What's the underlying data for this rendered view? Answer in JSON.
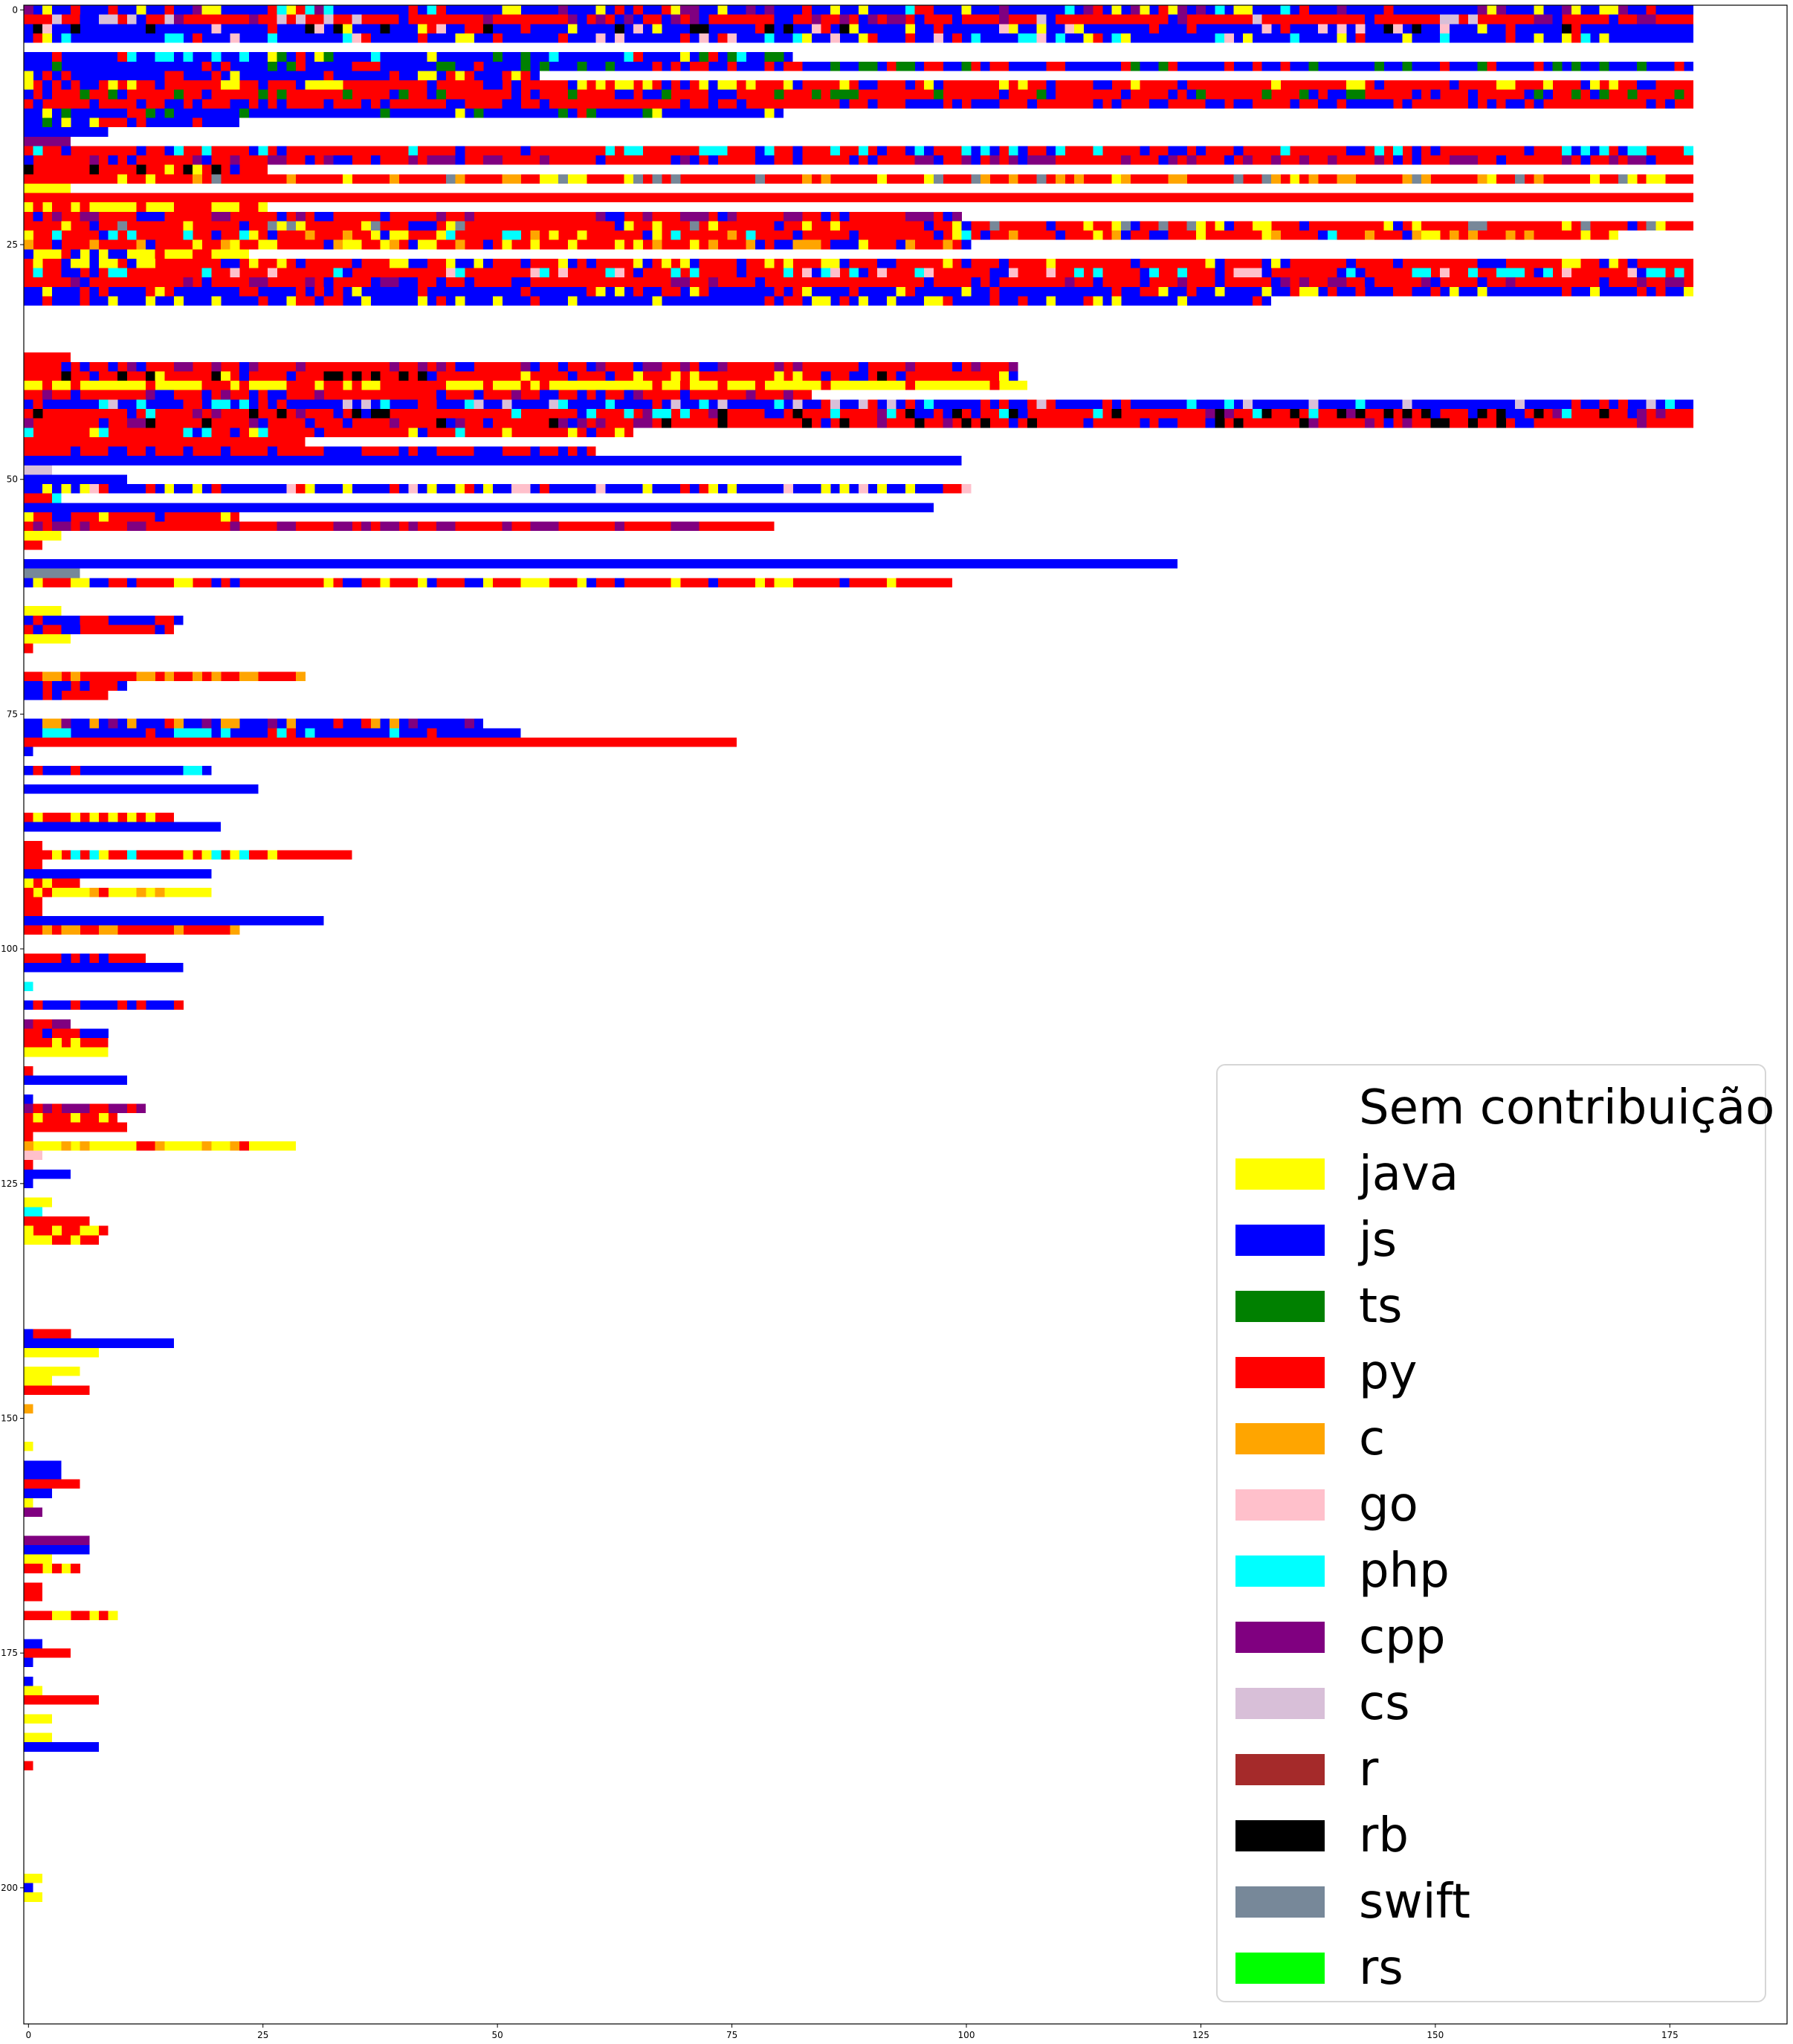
{
  "chart_data": {
    "type": "heatmap",
    "title": "",
    "xlabel": "",
    "ylabel": "",
    "xlim": [
      -0.5,
      187.5
    ],
    "ylim": [
      214.5,
      -0.5
    ],
    "x_ticks": [
      0,
      25,
      50,
      75,
      100,
      125,
      150,
      175
    ],
    "y_ticks": [
      0,
      25,
      50,
      75,
      100,
      125,
      150,
      175,
      200
    ],
    "grid": false,
    "legend_placement": "lower right",
    "categories": [
      {
        "key": "none",
        "label": "Sem contribuição",
        "color": "#ffffff"
      },
      {
        "key": "java",
        "label": "java",
        "color": "#ffff00"
      },
      {
        "key": "js",
        "label": "js",
        "color": "#0000ff"
      },
      {
        "key": "ts",
        "label": "ts",
        "color": "#008000"
      },
      {
        "key": "py",
        "label": "py",
        "color": "#ff0000"
      },
      {
        "key": "c",
        "label": "c",
        "color": "#ffa500"
      },
      {
        "key": "go",
        "label": "go",
        "color": "#ffc0cb"
      },
      {
        "key": "php",
        "label": "php",
        "color": "#00ffff"
      },
      {
        "key": "cpp",
        "label": "cpp",
        "color": "#800080"
      },
      {
        "key": "cs",
        "label": "cs",
        "color": "#d8bfd8"
      },
      {
        "key": "r",
        "label": "r",
        "color": "#a52a2a"
      },
      {
        "key": "rb",
        "label": "rb",
        "color": "#000000"
      },
      {
        "key": "swift",
        "label": "swift",
        "color": "#778899"
      },
      {
        "key": "rs",
        "label": "rs",
        "color": "#00ff00"
      }
    ],
    "rows": [
      {
        "y": 0,
        "len": 178,
        "base": "js",
        "mix": [
          "py",
          "php",
          "java",
          "cpp"
        ]
      },
      {
        "y": 1,
        "len": 178,
        "base": "py",
        "mix": [
          "js",
          "cpp",
          "cs"
        ]
      },
      {
        "y": 2,
        "len": 178,
        "base": "js",
        "mix": [
          "py",
          "rb",
          "java",
          "go"
        ]
      },
      {
        "y": 3,
        "len": 178,
        "base": "js",
        "mix": [
          "py",
          "php",
          "go",
          "java"
        ]
      },
      {
        "y": 5,
        "len": 82,
        "base": "js",
        "mix": [
          "py",
          "ts",
          "java",
          "php"
        ]
      },
      {
        "y": 6,
        "len": 178,
        "base": "js",
        "mix": [
          "ts",
          "py"
        ]
      },
      {
        "y": 7,
        "len": 55,
        "base": "js",
        "mix": [
          "py",
          "java"
        ]
      },
      {
        "y": 8,
        "len": 178,
        "base": "py",
        "mix": [
          "js",
          "java"
        ]
      },
      {
        "y": 9,
        "len": 178,
        "base": "py",
        "mix": [
          "js",
          "ts"
        ]
      },
      {
        "y": 10,
        "len": 178,
        "base": "py",
        "mix": [
          "js"
        ]
      },
      {
        "y": 11,
        "len": 81,
        "base": "js",
        "mix": [
          "py",
          "ts",
          "java"
        ]
      },
      {
        "y": 12,
        "len": 23,
        "base": "js",
        "mix": [
          "py",
          "java",
          "ts"
        ]
      },
      {
        "y": 13,
        "len": 9,
        "base": "js",
        "mix": []
      },
      {
        "y": 14,
        "len": 5,
        "base": "cpp",
        "mix": []
      },
      {
        "y": 15,
        "len": 178,
        "base": "py",
        "mix": [
          "js",
          "php"
        ]
      },
      {
        "y": 16,
        "len": 178,
        "base": "py",
        "mix": [
          "js",
          "cpp"
        ]
      },
      {
        "y": 17,
        "len": 26,
        "base": "py",
        "mix": [
          "java",
          "rb",
          "js"
        ]
      },
      {
        "y": 18,
        "len": 178,
        "base": "py",
        "mix": [
          "swift",
          "java",
          "c"
        ]
      },
      {
        "y": 19,
        "len": 5,
        "base": "java",
        "mix": []
      },
      {
        "y": 20,
        "len": 178,
        "base": "py",
        "mix": []
      },
      {
        "y": 21,
        "len": 26,
        "base": "java",
        "mix": [
          "py"
        ]
      },
      {
        "y": 22,
        "len": 100,
        "base": "py",
        "mix": [
          "js",
          "cpp"
        ]
      },
      {
        "y": 23,
        "len": 178,
        "base": "py",
        "mix": [
          "js",
          "swift",
          "java"
        ]
      },
      {
        "y": 24,
        "len": 170,
        "base": "py",
        "mix": [
          "js",
          "c",
          "java",
          "php"
        ]
      },
      {
        "y": 25,
        "len": 101,
        "base": "py",
        "mix": [
          "js",
          "java",
          "c"
        ]
      },
      {
        "y": 26,
        "len": 24,
        "base": "java",
        "mix": [
          "py",
          "js"
        ]
      },
      {
        "y": 27,
        "len": 178,
        "base": "py",
        "mix": [
          "js",
          "java"
        ]
      },
      {
        "y": 28,
        "len": 178,
        "base": "py",
        "mix": [
          "js",
          "php",
          "go"
        ]
      },
      {
        "y": 29,
        "len": 178,
        "base": "py",
        "mix": [
          "js",
          "cpp"
        ]
      },
      {
        "y": 30,
        "len": 178,
        "base": "js",
        "mix": [
          "py",
          "java"
        ]
      },
      {
        "y": 31,
        "len": 133,
        "base": "js",
        "mix": [
          "java",
          "py"
        ]
      },
      {
        "y": 37,
        "len": 5,
        "base": "py",
        "mix": []
      },
      {
        "y": 38,
        "len": 106,
        "base": "py",
        "mix": [
          "js",
          "cpp"
        ]
      },
      {
        "y": 39,
        "len": 106,
        "base": "py",
        "mix": [
          "java",
          "rb",
          "js"
        ]
      },
      {
        "y": 40,
        "len": 107,
        "base": "java",
        "mix": [
          "py"
        ]
      },
      {
        "y": 41,
        "len": 84,
        "base": "py",
        "mix": [
          "js",
          "cpp"
        ]
      },
      {
        "y": 42,
        "len": 178,
        "base": "js",
        "mix": [
          "py",
          "cs",
          "php"
        ]
      },
      {
        "y": 43,
        "len": 178,
        "base": "py",
        "mix": [
          "js",
          "cpp",
          "php",
          "rb"
        ]
      },
      {
        "y": 44,
        "len": 178,
        "base": "py",
        "mix": [
          "rb",
          "cpp",
          "js"
        ]
      },
      {
        "y": 45,
        "len": 65,
        "base": "py",
        "mix": [
          "js",
          "php",
          "java"
        ]
      },
      {
        "y": 46,
        "len": 30,
        "base": "py",
        "mix": []
      },
      {
        "y": 47,
        "len": 61,
        "base": "py",
        "mix": [
          "js"
        ]
      },
      {
        "y": 48,
        "len": 100,
        "base": "js",
        "mix": []
      },
      {
        "y": 49,
        "len": 3,
        "base": "cs",
        "mix": []
      },
      {
        "y": 50,
        "len": 11,
        "base": "js",
        "mix": []
      },
      {
        "y": 51,
        "len": 101,
        "base": "js",
        "mix": [
          "py",
          "java",
          "go"
        ]
      },
      {
        "y": 52,
        "len": 4,
        "base": "php",
        "mix": [
          "py"
        ]
      },
      {
        "y": 53,
        "len": 97,
        "base": "js",
        "mix": []
      },
      {
        "y": 54,
        "len": 23,
        "base": "py",
        "mix": [
          "java",
          "js"
        ]
      },
      {
        "y": 55,
        "len": 80,
        "base": "py",
        "mix": [
          "cpp"
        ]
      },
      {
        "y": 56,
        "len": 4,
        "base": "java",
        "mix": [
          "php"
        ]
      },
      {
        "y": 57,
        "len": 2,
        "base": "py",
        "mix": []
      },
      {
        "y": 59,
        "len": 123,
        "base": "js",
        "mix": []
      },
      {
        "y": 60,
        "len": 6,
        "base": "swift",
        "mix": []
      },
      {
        "y": 61,
        "len": 99,
        "base": "py",
        "mix": [
          "java",
          "js"
        ]
      },
      {
        "y": 64,
        "len": 4,
        "base": "java",
        "mix": []
      },
      {
        "y": 65,
        "len": 17,
        "base": "js",
        "mix": [
          "py"
        ]
      },
      {
        "y": 66,
        "len": 16,
        "base": "py",
        "mix": [
          "js"
        ]
      },
      {
        "y": 67,
        "len": 5,
        "base": "java",
        "mix": []
      },
      {
        "y": 68,
        "len": 1,
        "base": "py",
        "mix": []
      },
      {
        "y": 71,
        "len": 30,
        "base": "py",
        "mix": [
          "c"
        ]
      },
      {
        "y": 72,
        "len": 11,
        "base": "py",
        "mix": [
          "js"
        ]
      },
      {
        "y": 73,
        "len": 9,
        "base": "py",
        "mix": [
          "js"
        ]
      },
      {
        "y": 76,
        "len": 49,
        "base": "js",
        "mix": [
          "c",
          "cpp",
          "py"
        ]
      },
      {
        "y": 77,
        "len": 53,
        "base": "js",
        "mix": [
          "php",
          "py"
        ]
      },
      {
        "y": 78,
        "len": 76,
        "base": "py",
        "mix": []
      },
      {
        "y": 79,
        "len": 1,
        "base": "js",
        "mix": []
      },
      {
        "y": 81,
        "len": 20,
        "base": "js",
        "mix": [
          "php",
          "py"
        ]
      },
      {
        "y": 83,
        "len": 25,
        "base": "js",
        "mix": []
      },
      {
        "y": 86,
        "len": 16,
        "base": "py",
        "mix": [
          "java"
        ]
      },
      {
        "y": 87,
        "len": 21,
        "base": "js",
        "mix": []
      },
      {
        "y": 89,
        "len": 2,
        "base": "py",
        "mix": []
      },
      {
        "y": 90,
        "len": 35,
        "base": "py",
        "mix": [
          "java",
          "php"
        ]
      },
      {
        "y": 91,
        "len": 2,
        "base": "py",
        "mix": []
      },
      {
        "y": 92,
        "len": 20,
        "base": "js",
        "mix": []
      },
      {
        "y": 93,
        "len": 6,
        "base": "py",
        "mix": [
          "java"
        ]
      },
      {
        "y": 94,
        "len": 20,
        "base": "java",
        "mix": [
          "py",
          "c"
        ]
      },
      {
        "y": 95,
        "len": 2,
        "base": "py",
        "mix": []
      },
      {
        "y": 96,
        "len": 2,
        "base": "py",
        "mix": []
      },
      {
        "y": 97,
        "len": 32,
        "base": "js",
        "mix": []
      },
      {
        "y": 98,
        "len": 23,
        "base": "py",
        "mix": [
          "c"
        ]
      },
      {
        "y": 101,
        "len": 13,
        "base": "py",
        "mix": [
          "js"
        ]
      },
      {
        "y": 102,
        "len": 17,
        "base": "js",
        "mix": []
      },
      {
        "y": 104,
        "len": 1,
        "base": "php",
        "mix": []
      },
      {
        "y": 106,
        "len": 17,
        "base": "js",
        "mix": [
          "py"
        ]
      },
      {
        "y": 108,
        "len": 5,
        "base": "cpp",
        "mix": [
          "py"
        ]
      },
      {
        "y": 109,
        "len": 9,
        "base": "py",
        "mix": [
          "js"
        ]
      },
      {
        "y": 110,
        "len": 9,
        "base": "py",
        "mix": [
          "java"
        ]
      },
      {
        "y": 111,
        "len": 9,
        "base": "java",
        "mix": []
      },
      {
        "y": 113,
        "len": 1,
        "base": "py",
        "mix": []
      },
      {
        "y": 114,
        "len": 11,
        "base": "js",
        "mix": []
      },
      {
        "y": 116,
        "len": 1,
        "base": "js",
        "mix": []
      },
      {
        "y": 117,
        "len": 13,
        "base": "cpp",
        "mix": [
          "py"
        ]
      },
      {
        "y": 118,
        "len": 10,
        "base": "py",
        "mix": [
          "java"
        ]
      },
      {
        "y": 119,
        "len": 11,
        "base": "py",
        "mix": []
      },
      {
        "y": 120,
        "len": 1,
        "base": "py",
        "mix": []
      },
      {
        "y": 121,
        "len": 29,
        "base": "java",
        "mix": [
          "py",
          "c"
        ]
      },
      {
        "y": 122,
        "len": 2,
        "base": "go",
        "mix": []
      },
      {
        "y": 123,
        "len": 1,
        "base": "py",
        "mix": []
      },
      {
        "y": 124,
        "len": 5,
        "base": "js",
        "mix": []
      },
      {
        "y": 125,
        "len": 1,
        "base": "js",
        "mix": []
      },
      {
        "y": 127,
        "len": 3,
        "base": "java",
        "mix": []
      },
      {
        "y": 128,
        "len": 2,
        "base": "php",
        "mix": []
      },
      {
        "y": 129,
        "len": 7,
        "base": "py",
        "mix": []
      },
      {
        "y": 130,
        "len": 9,
        "base": "py",
        "mix": [
          "java"
        ]
      },
      {
        "y": 131,
        "len": 8,
        "base": "py",
        "mix": [
          "java"
        ]
      },
      {
        "y": 141,
        "len": 5,
        "base": "js",
        "mix": [
          "py"
        ]
      },
      {
        "y": 142,
        "len": 16,
        "base": "js",
        "mix": []
      },
      {
        "y": 143,
        "len": 8,
        "base": "java",
        "mix": []
      },
      {
        "y": 145,
        "len": 6,
        "base": "java",
        "mix": []
      },
      {
        "y": 146,
        "len": 3,
        "base": "java",
        "mix": []
      },
      {
        "y": 147,
        "len": 7,
        "base": "py",
        "mix": []
      },
      {
        "y": 149,
        "len": 1,
        "base": "c",
        "mix": []
      },
      {
        "y": 153,
        "len": 1,
        "base": "java",
        "mix": []
      },
      {
        "y": 155,
        "len": 4,
        "base": "js",
        "mix": []
      },
      {
        "y": 156,
        "len": 4,
        "base": "js",
        "mix": []
      },
      {
        "y": 157,
        "len": 6,
        "base": "py",
        "mix": []
      },
      {
        "y": 158,
        "len": 3,
        "base": "js",
        "mix": []
      },
      {
        "y": 159,
        "len": 1,
        "base": "java",
        "mix": []
      },
      {
        "y": 160,
        "len": 2,
        "base": "cpp",
        "mix": []
      },
      {
        "y": 163,
        "len": 7,
        "base": "cpp",
        "mix": [
          "py"
        ]
      },
      {
        "y": 164,
        "len": 7,
        "base": "js",
        "mix": []
      },
      {
        "y": 165,
        "len": 3,
        "base": "java",
        "mix": []
      },
      {
        "y": 166,
        "len": 6,
        "base": "java",
        "mix": [
          "py"
        ]
      },
      {
        "y": 168,
        "len": 2,
        "base": "py",
        "mix": []
      },
      {
        "y": 169,
        "len": 2,
        "base": "py",
        "mix": []
      },
      {
        "y": 171,
        "len": 10,
        "base": "py",
        "mix": [
          "java"
        ]
      },
      {
        "y": 174,
        "len": 2,
        "base": "js",
        "mix": []
      },
      {
        "y": 175,
        "len": 5,
        "base": "py",
        "mix": []
      },
      {
        "y": 176,
        "len": 1,
        "base": "js",
        "mix": []
      },
      {
        "y": 178,
        "len": 1,
        "base": "js",
        "mix": []
      },
      {
        "y": 179,
        "len": 2,
        "base": "java",
        "mix": []
      },
      {
        "y": 180,
        "len": 8,
        "base": "py",
        "mix": []
      },
      {
        "y": 182,
        "len": 3,
        "base": "java",
        "mix": []
      },
      {
        "y": 184,
        "len": 3,
        "base": "java",
        "mix": []
      },
      {
        "y": 185,
        "len": 8,
        "base": "js",
        "mix": []
      },
      {
        "y": 187,
        "len": 1,
        "base": "py",
        "mix": []
      },
      {
        "y": 199,
        "len": 2,
        "base": "java",
        "mix": []
      },
      {
        "y": 200,
        "len": 1,
        "base": "js",
        "mix": []
      },
      {
        "y": 201,
        "len": 2,
        "base": "java",
        "mix": []
      }
    ]
  }
}
